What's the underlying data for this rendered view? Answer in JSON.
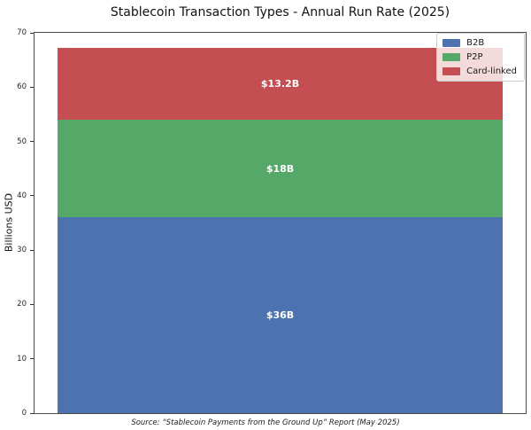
{
  "chart_data": {
    "type": "bar",
    "stacked": true,
    "orientation": "vertical",
    "title": "Stablecoin Transaction Types - Annual Run Rate (2025)",
    "xlabel": "",
    "ylabel": "Billions USD",
    "ylim": [
      0,
      70
    ],
    "yticks": [
      0,
      10,
      20,
      30,
      40,
      50,
      60,
      70
    ],
    "grid": false,
    "legend_position": "upper right",
    "categories": [
      ""
    ],
    "series": [
      {
        "name": "B2B",
        "values": [
          36
        ],
        "color": "#4C72B0",
        "data_label": "$36B"
      },
      {
        "name": "P2P",
        "values": [
          18
        ],
        "color": "#55A868",
        "data_label": "$18B"
      },
      {
        "name": "Card-linked",
        "values": [
          13.2
        ],
        "color": "#C44E52",
        "data_label": "$13.2B"
      }
    ],
    "total": 67.2,
    "data_label_color": "#ffffff",
    "annotation": "Source: “Stablecoin Payments from the Ground Up” Report (May 2025)"
  }
}
